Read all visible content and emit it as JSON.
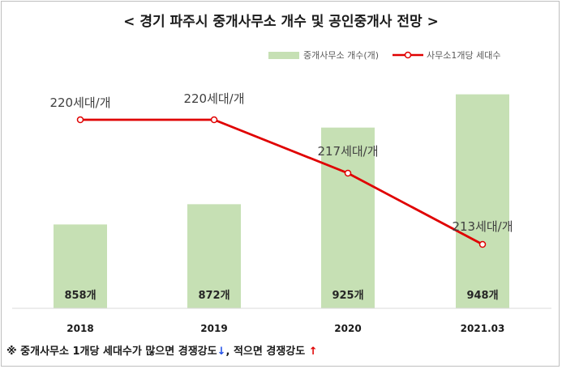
{
  "chart_data": {
    "type": "bar+line",
    "title": "< 경기 파주시 중개사무소 개수 및 공인중개사 전망 >",
    "categories": [
      "2018",
      "2019",
      "2020",
      "2021.03"
    ],
    "series": [
      {
        "name": "중개사무소 개수(개)",
        "kind": "bar",
        "values": [
          858,
          872,
          925,
          948
        ],
        "labels": [
          "858개",
          "872개",
          "925개",
          "948개"
        ],
        "color": "#c6e0b4"
      },
      {
        "name": "사무소1개당 세대수",
        "kind": "line",
        "values": [
          220,
          220,
          217,
          213
        ],
        "labels": [
          "220세대/개",
          "220세대/개",
          "217세대/개",
          "213세대/개"
        ],
        "color": "#e00000"
      }
    ],
    "legend_position": "top-right",
    "grid": false
  },
  "footnote": {
    "part1": "※ 중개사무소 1개당 세대수가 많으면 경쟁강도",
    "down_arrow": "↓",
    "part2": ", 적으면 경쟁강도 ",
    "up_arrow": "↑"
  }
}
